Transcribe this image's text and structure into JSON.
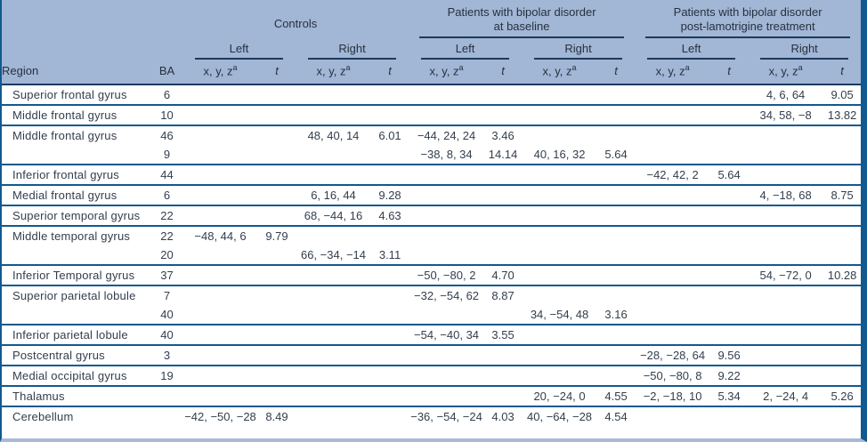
{
  "colors": {
    "header_background": "#a2b6d6",
    "header_rule": "#1c3a5e",
    "row_rule": "#11598f",
    "side_border": "#11598f",
    "bottom_rule": "#a9bbd4",
    "text": "#333e4c"
  },
  "table": {
    "region_header": "Region",
    "ba_header": "BA",
    "coord_header": "x, y, z",
    "coord_header_sup": "a",
    "t_header": "t",
    "left_header": "Left",
    "right_header": "Right",
    "groups": [
      {
        "title": "Controls",
        "underlined": false
      },
      {
        "title": "Patients with bipolar disorder\nat baseline",
        "underlined": true
      },
      {
        "title": "Patients with bipolar disorder\npost-lamotrigine treatment",
        "underlined": true
      }
    ],
    "rows": [
      {
        "region": "Superior frontal gyrus",
        "lines": [
          {
            "ba": "6",
            "cells": [
              "",
              "",
              "",
              "",
              "",
              "",
              "",
              "",
              "",
              "",
              "4, 6, 64",
              "9.05"
            ]
          }
        ]
      },
      {
        "region": "Middle frontal gyrus",
        "lines": [
          {
            "ba": "10",
            "cells": [
              "",
              "",
              "",
              "",
              "",
              "",
              "",
              "",
              "",
              "",
              "34, 58, −8",
              "13.82"
            ]
          }
        ]
      },
      {
        "region": "Middle frontal gyrus",
        "lines": [
          {
            "ba": "46",
            "cells": [
              "",
              "",
              "48, 40, 14",
              "6.01",
              "−44, 24, 24",
              "3.46",
              "",
              "",
              "",
              "",
              "",
              ""
            ]
          },
          {
            "ba": "9",
            "cells": [
              "",
              "",
              "",
              "",
              "−38, 8, 34",
              "14.14",
              "40, 16, 32",
              "5.64",
              "",
              "",
              "",
              ""
            ]
          }
        ]
      },
      {
        "region": "Inferior frontal gyrus",
        "lines": [
          {
            "ba": "44",
            "cells": [
              "",
              "",
              "",
              "",
              "",
              "",
              "",
              "",
              "−42, 42, 2",
              "5.64",
              "",
              ""
            ]
          }
        ]
      },
      {
        "region": "Medial frontal gyrus",
        "lines": [
          {
            "ba": "6",
            "cells": [
              "",
              "",
              "6, 16, 44",
              "9.28",
              "",
              "",
              "",
              "",
              "",
              "",
              "4, −18, 68",
              "8.75"
            ]
          }
        ]
      },
      {
        "region": "Superior temporal gyrus",
        "lines": [
          {
            "ba": "22",
            "cells": [
              "",
              "",
              "68, −44, 16",
              "4.63",
              "",
              "",
              "",
              "",
              "",
              "",
              "",
              ""
            ]
          }
        ]
      },
      {
        "region": "Middle temporal gyrus",
        "lines": [
          {
            "ba": "22",
            "cells": [
              "−48, 44, 6",
              "9.79",
              "",
              "",
              "",
              "",
              "",
              "",
              "",
              "",
              "",
              ""
            ]
          },
          {
            "ba": "20",
            "cells": [
              "",
              "",
              "66, −34, −14",
              "3.11",
              "",
              "",
              "",
              "",
              "",
              "",
              "",
              ""
            ]
          }
        ]
      },
      {
        "region": "Inferior Temporal gyrus",
        "lines": [
          {
            "ba": "37",
            "cells": [
              "",
              "",
              "",
              "",
              "−50, −80, 2",
              "4.70",
              "",
              "",
              "",
              "",
              "54, −72, 0",
              "10.28"
            ]
          }
        ]
      },
      {
        "region": "Superior parietal lobule",
        "lines": [
          {
            "ba": "7",
            "cells": [
              "",
              "",
              "",
              "",
              "−32, −54, 62",
              "8.87",
              "",
              "",
              "",
              "",
              "",
              ""
            ]
          },
          {
            "ba": "40",
            "cells": [
              "",
              "",
              "",
              "",
              "",
              "",
              "34, −54, 48",
              "3.16",
              "",
              "",
              "",
              ""
            ]
          }
        ]
      },
      {
        "region": "Inferior parietal lobule",
        "lines": [
          {
            "ba": "40",
            "cells": [
              "",
              "",
              "",
              "",
              "−54, −40, 34",
              "3.55",
              "",
              "",
              "",
              "",
              "",
              ""
            ]
          }
        ]
      },
      {
        "region": "Postcentral gyrus",
        "lines": [
          {
            "ba": "3",
            "cells": [
              "",
              "",
              "",
              "",
              "",
              "",
              "",
              "",
              "−28, −28, 64",
              "9.56",
              "",
              ""
            ]
          }
        ]
      },
      {
        "region": "Medial occipital gyrus",
        "lines": [
          {
            "ba": "19",
            "cells": [
              "",
              "",
              "",
              "",
              "",
              "",
              "",
              "",
              "−50, −80, 8",
              "9.22",
              "",
              ""
            ]
          }
        ]
      },
      {
        "region": "Thalamus",
        "lines": [
          {
            "ba": "",
            "cells": [
              "",
              "",
              "",
              "",
              "",
              "",
              "20, −24, 0",
              "4.55",
              "−2, −18, 10",
              "5.34",
              "2, −24, 4",
              "5.26"
            ]
          }
        ]
      },
      {
        "region": "Cerebellum",
        "lines": [
          {
            "ba": "",
            "cells": [
              "−42, −50, −28",
              "8.49",
              "",
              "",
              "−36, −54, −24",
              "4.03",
              "40, −64, −28",
              "4.54",
              "",
              "",
              "",
              ""
            ]
          }
        ]
      }
    ]
  }
}
